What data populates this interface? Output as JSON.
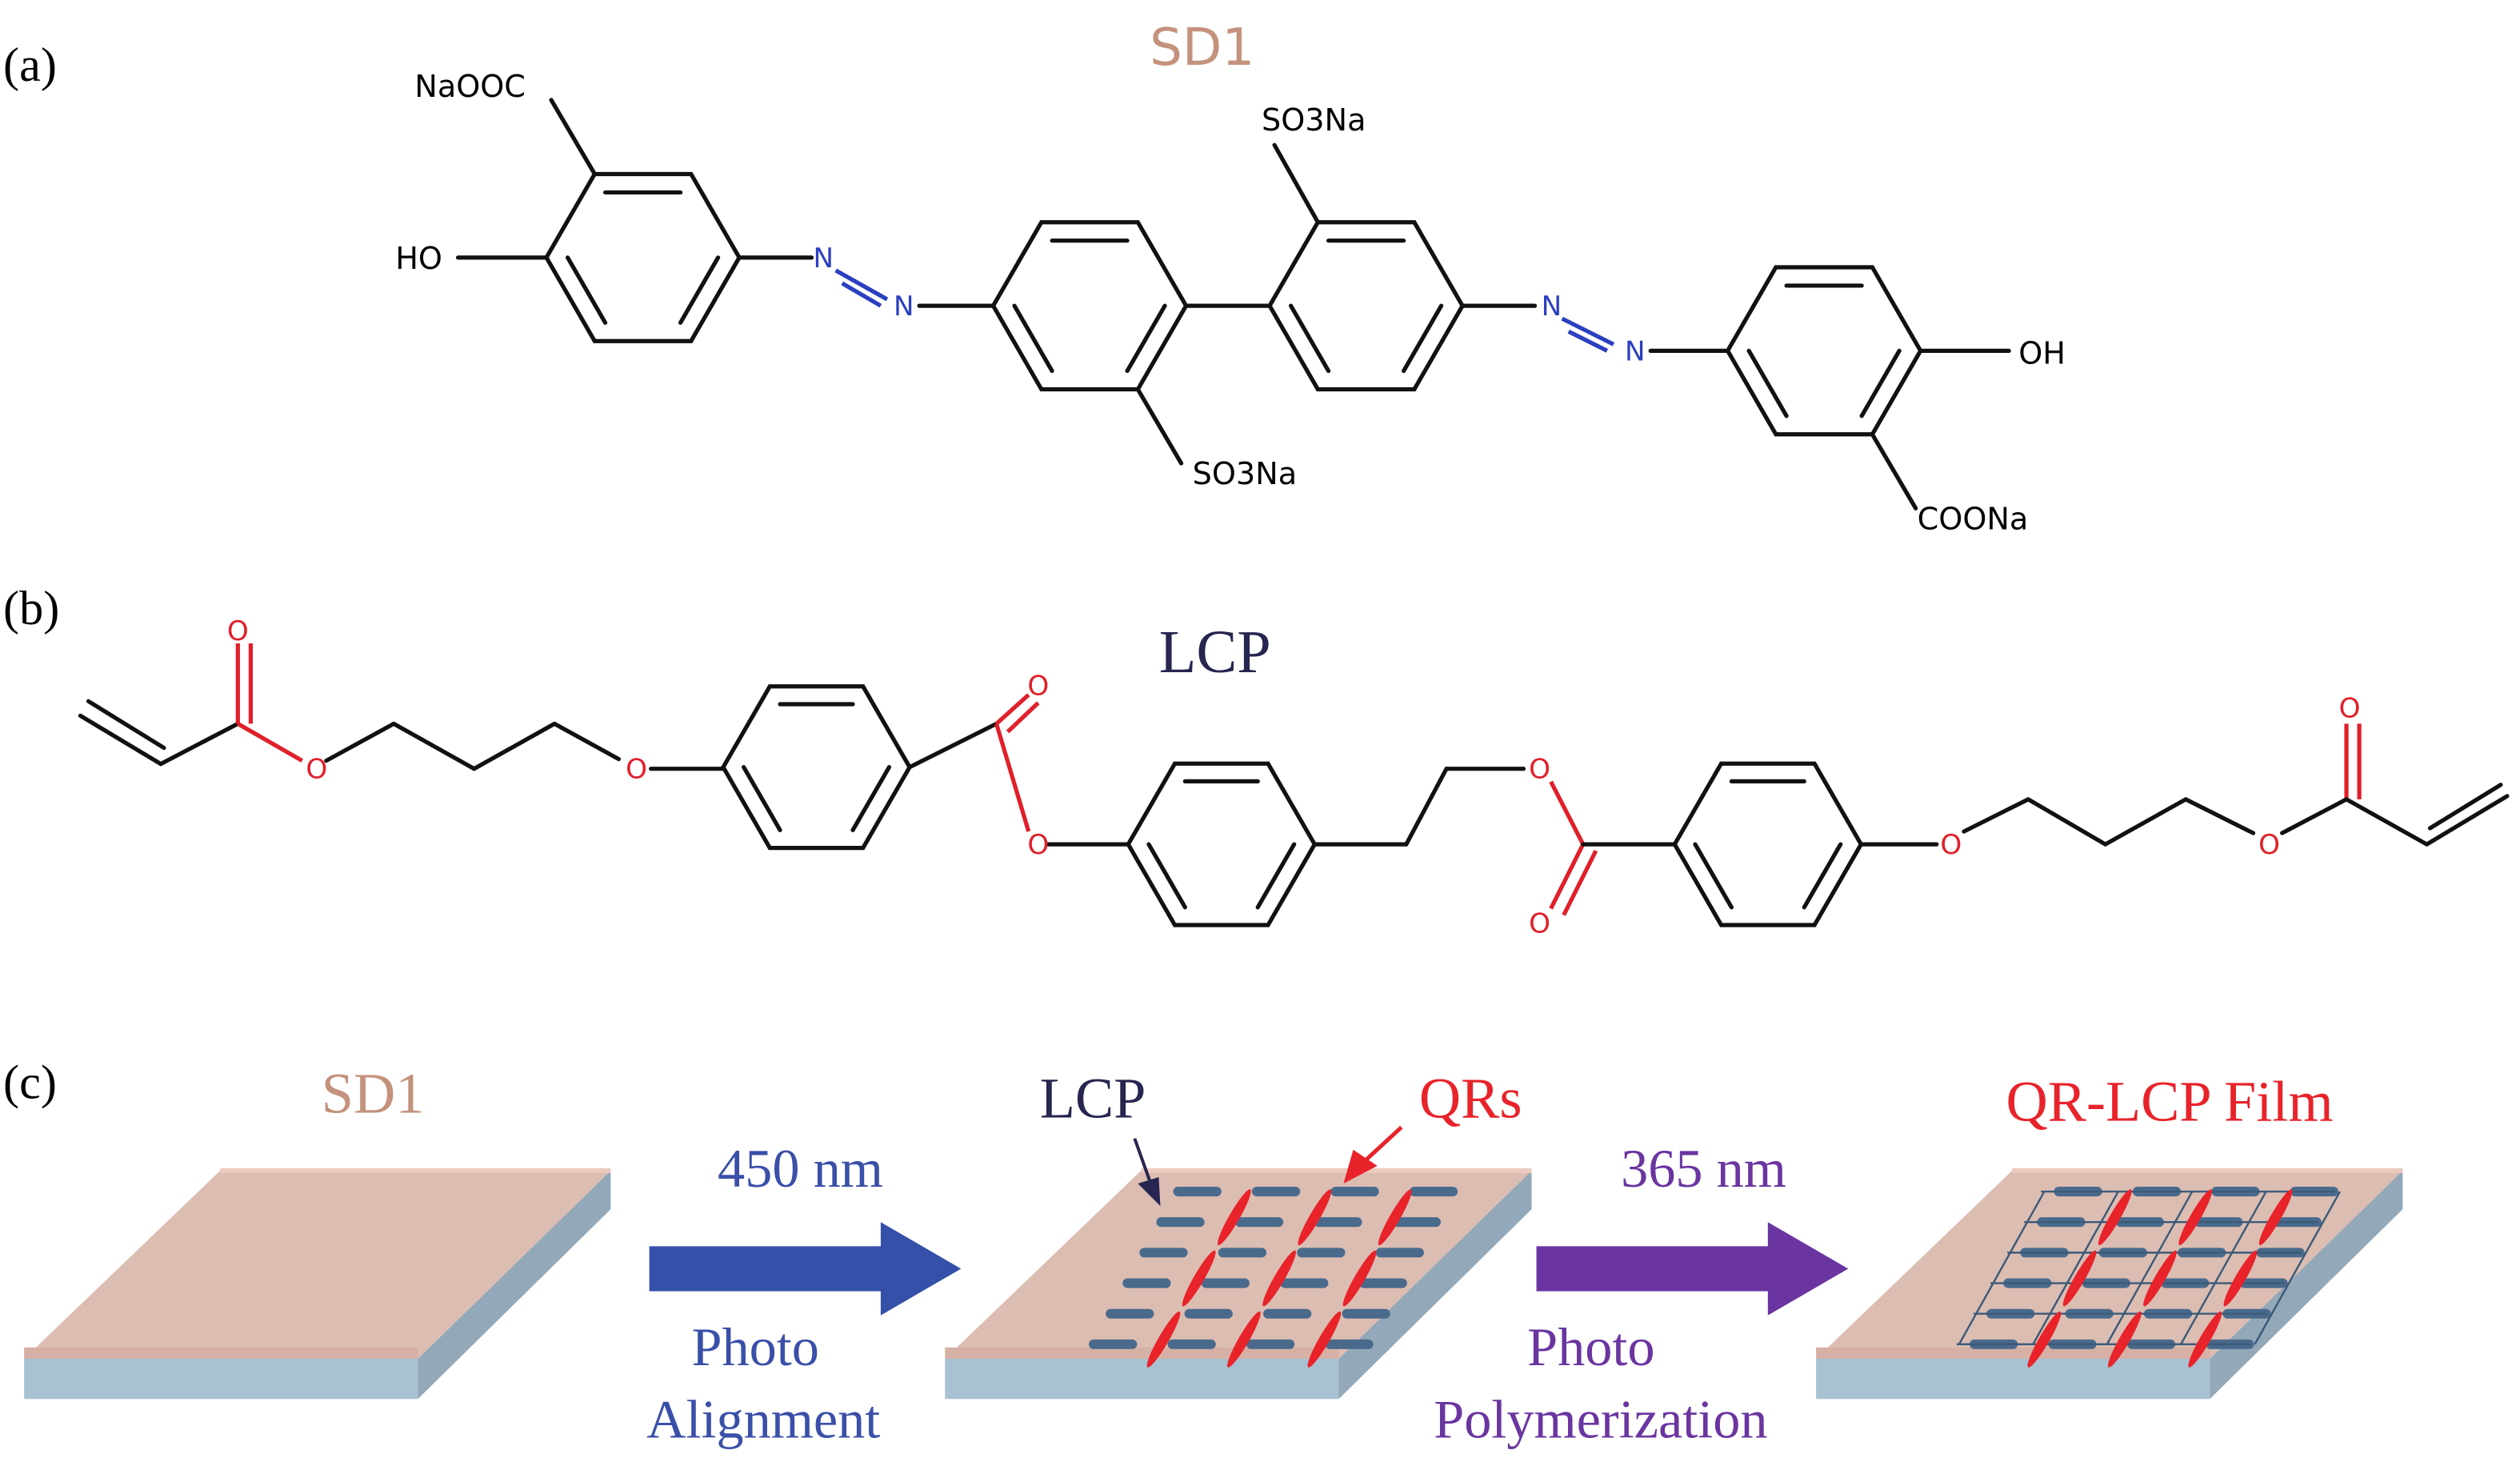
{
  "panel_labels": {
    "a": "(a)",
    "b": "(b)",
    "c": "(c)"
  },
  "panel_a": {
    "title": "SD1",
    "atoms": {
      "naooc": "NaOOC",
      "ho": "HO",
      "so3na_bottom": "SO3Na",
      "so3na_top": "SO3Na",
      "oh": "OH",
      "coona": "COONa",
      "n": "N"
    }
  },
  "panel_b": {
    "title": "LCP",
    "atoms": {
      "o": "O"
    }
  },
  "panel_c": {
    "substrate_label": "SD1",
    "lcp_label": "LCP",
    "qrs_label": "QRs",
    "film_label": "QR-LCP Film",
    "step1": {
      "wavelength": "450 nm",
      "line1": "Photo",
      "line2": "Alignment"
    },
    "step2": {
      "wavelength": "365 nm",
      "line1": "Photo",
      "line2": "Polymerization"
    }
  },
  "colors": {
    "sd1_text": "#c4927c",
    "lcp_text": "#262650",
    "red": "#e8232a",
    "blue_arrow": "#3450a8",
    "purple_arrow": "#6a35a0",
    "slab_top": "#dcbdb2",
    "slab_base": "#a8c2d2",
    "lcp_rod": "#4a6a8c"
  }
}
